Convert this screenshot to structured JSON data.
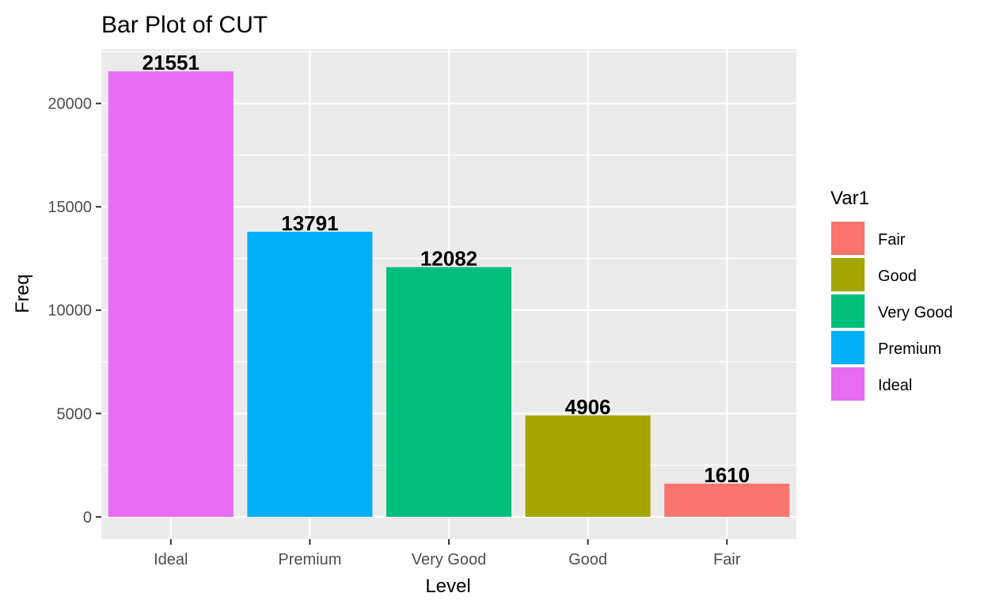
{
  "chart_data": {
    "type": "bar",
    "title": "Bar Plot of CUT",
    "xlabel": "Level",
    "ylabel": "Freq",
    "categories": [
      "Ideal",
      "Premium",
      "Very Good",
      "Good",
      "Fair"
    ],
    "values": [
      21551,
      13791,
      12082,
      4906,
      1610
    ],
    "bar_colors": [
      "#E76BF3",
      "#00B0F6",
      "#00BF7D",
      "#A3A500",
      "#F8766D"
    ],
    "ylim": [
      -1078,
      22629
    ],
    "yticks": [
      0,
      5000,
      10000,
      15000,
      20000
    ],
    "ytick_labels": [
      "0",
      "5000",
      "10000",
      "15000",
      "20000"
    ],
    "grid": true,
    "panel_background": "#EBEBEB",
    "grid_color": "#FFFFFF",
    "legend": {
      "title": "Var1",
      "position": "right",
      "entries": [
        {
          "label": "Fair",
          "color": "#F8766D"
        },
        {
          "label": "Good",
          "color": "#A3A500"
        },
        {
          "label": "Very Good",
          "color": "#00BF7D"
        },
        {
          "label": "Premium",
          "color": "#00B0F6"
        },
        {
          "label": "Ideal",
          "color": "#E76BF3"
        }
      ]
    }
  }
}
